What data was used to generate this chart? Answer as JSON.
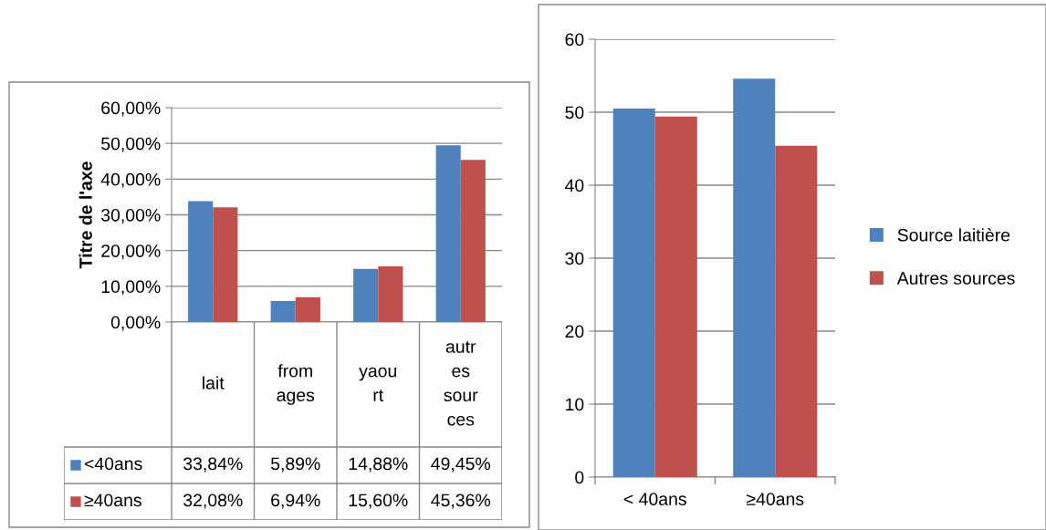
{
  "chart_data": [
    {
      "type": "bar",
      "ylabel": "Titre de l'axe",
      "categories": [
        "lait",
        "fromages",
        "yaourt",
        "autres sources"
      ],
      "series": [
        {
          "name": "<40ans",
          "color": "#4f81bd",
          "values": [
            33.84,
            5.89,
            14.88,
            49.45
          ],
          "value_labels": [
            "33,84%",
            "5,89%",
            "14,88%",
            "49,45%"
          ]
        },
        {
          "name": "≥40ans",
          "color": "#c0504d",
          "values": [
            32.08,
            6.94,
            15.6,
            45.36
          ],
          "value_labels": [
            "32,08%",
            "6,94%",
            "15,60%",
            "45,36%"
          ]
        }
      ],
      "ylim": [
        0,
        60
      ],
      "yticks": [
        {
          "value": 0,
          "label": "0,00%"
        },
        {
          "value": 10,
          "label": "10,00%"
        },
        {
          "value": 20,
          "label": "20,00%"
        },
        {
          "value": 30,
          "label": "30,00%"
        },
        {
          "value": 40,
          "label": "40,00%"
        },
        {
          "value": 50,
          "label": "50,00%"
        },
        {
          "value": 60,
          "label": "60,00%"
        }
      ],
      "grid": "y",
      "legend": "bottom"
    },
    {
      "type": "bar",
      "categories": [
        "< 40ans",
        "≥40ans"
      ],
      "series": [
        {
          "name": "Source laitière",
          "color": "#4f81bd",
          "values": [
            50.5,
            54.6
          ]
        },
        {
          "name": "Autres sources",
          "color": "#c0504d",
          "values": [
            49.4,
            45.4
          ]
        }
      ],
      "ylim": [
        0,
        60
      ],
      "yticks": [
        0,
        10,
        20,
        30,
        40,
        50,
        60
      ],
      "grid": "y",
      "legend": "right"
    }
  ]
}
